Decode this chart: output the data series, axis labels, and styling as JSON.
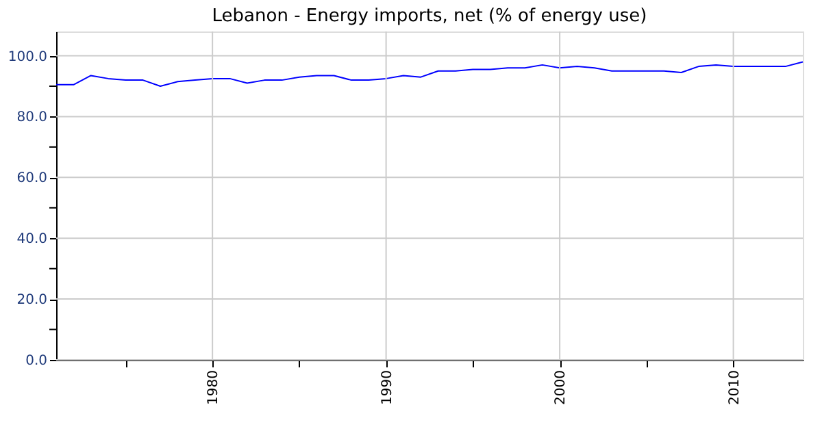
{
  "chart_data": {
    "type": "line",
    "title": "Lebanon - Energy imports, net (% of energy use)",
    "x": [
      1971,
      1972,
      1973,
      1974,
      1975,
      1976,
      1977,
      1978,
      1979,
      1980,
      1981,
      1982,
      1983,
      1984,
      1985,
      1986,
      1987,
      1988,
      1989,
      1990,
      1991,
      1992,
      1993,
      1994,
      1995,
      1996,
      1997,
      1998,
      1999,
      2000,
      2001,
      2002,
      2003,
      2004,
      2005,
      2006,
      2007,
      2008,
      2009,
      2010,
      2011,
      2012,
      2013,
      2014
    ],
    "series": [
      {
        "color": "#0000ff",
        "values": [
          90.5,
          90.5,
          93.5,
          92.5,
          92,
          92,
          90,
          91.5,
          92,
          92.5,
          92.5,
          91,
          92,
          92,
          93,
          93.5,
          93.5,
          92,
          92,
          92.5,
          93.5,
          93,
          95,
          95,
          95.5,
          95.5,
          96,
          96,
          97,
          96,
          96.5,
          96,
          95,
          95,
          95,
          95,
          94.5,
          96.5,
          97,
          96.5,
          96.5,
          96.5,
          96.5,
          98
        ]
      }
    ],
    "xlim": [
      1971,
      2014
    ],
    "xticks": [
      {
        "value": 1975,
        "label": null
      },
      1980,
      {
        "value": 1985,
        "label": null
      },
      1990,
      {
        "value": 1995,
        "label": null
      },
      2000,
      {
        "value": 2005,
        "label": null
      },
      2010
    ],
    "ylim": [
      0,
      108
    ],
    "yticks": [
      {
        "value": 0,
        "label": "0.0"
      },
      {
        "value": 10,
        "label": null
      },
      {
        "value": 20,
        "label": "20.0"
      },
      {
        "value": 30,
        "label": null
      },
      {
        "value": 40,
        "label": "40.0"
      },
      {
        "value": 50,
        "label": null
      },
      {
        "value": 60,
        "label": "60.0"
      },
      {
        "value": 70,
        "label": null
      },
      {
        "value": 80,
        "label": "80.0"
      },
      {
        "value": 90,
        "label": null
      },
      {
        "value": 100,
        "label": "100.0"
      }
    ],
    "grid": true,
    "marker": "none",
    "line_style": "solid"
  }
}
